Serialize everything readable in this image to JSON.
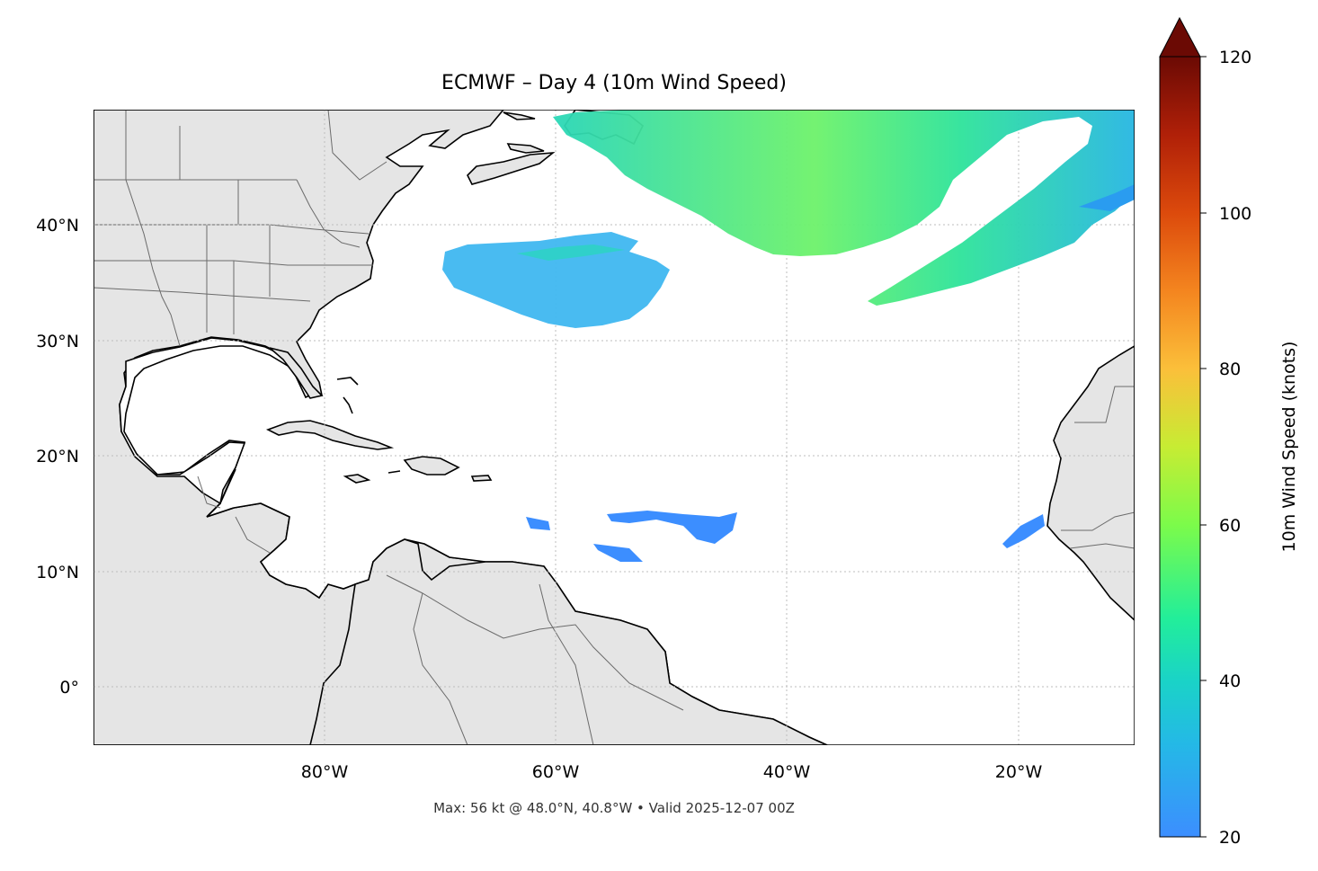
{
  "map": {
    "title": "ECMWF – Day 4 (10m Wind Speed)",
    "footnote": "Max: 56 kt @ 48.0°N, 40.8°W • Valid 2025-12-07 00Z",
    "lon_ticks": [
      "80°W",
      "60°W",
      "40°W",
      "20°W"
    ],
    "lat_ticks": [
      "40°N",
      "30°N",
      "20°N",
      "10°N",
      "0°"
    ],
    "gridlines": true,
    "colors": {
      "land": "#e5e5e5",
      "ocean": "#ffffff",
      "coast": "#000000",
      "borders": "#6b6b6b",
      "grid": "#bdbdbd"
    }
  },
  "colorbar": {
    "label": "10m Wind Speed (knots)",
    "ticks": [
      "20",
      "40",
      "60",
      "80",
      "100",
      "120"
    ],
    "range": [
      20,
      120
    ],
    "extend": "max",
    "colormap": [
      "#3c8eff",
      "#1ac9d7",
      "#22ee9a",
      "#9ffc3c",
      "#dddd35",
      "#fbb33a",
      "#f47b1f",
      "#d33a07",
      "#9e1606",
      "#6b0a04"
    ]
  },
  "wind_areas": [
    {
      "region": "North Atlantic jet (north)",
      "speed_kt": 45
    },
    {
      "region": "Central Atlantic band",
      "speed_kt": 30
    },
    {
      "region": "Northeast Atlantic streak",
      "speed_kt": 28
    },
    {
      "region": "Tropical easterlies",
      "speed_kt": 22
    }
  ]
}
